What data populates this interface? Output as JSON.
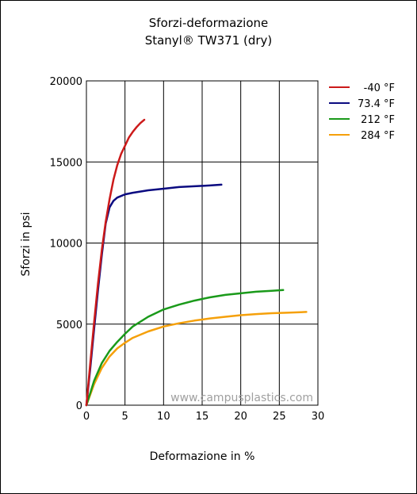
{
  "chart_data": {
    "type": "line",
    "title": "Sforzi-deformazione",
    "subtitle": "Stanyl® TW371 (dry)",
    "xlabel": "Deformazione in %",
    "ylabel": "Sforzi in psi",
    "xlim": [
      0,
      30
    ],
    "ylim": [
      0,
      20000
    ],
    "xticks": [
      "0",
      "5",
      "10",
      "15",
      "20",
      "25",
      "30"
    ],
    "yticks": [
      "0",
      "5000",
      "10000",
      "15000",
      "20000"
    ],
    "grid": true,
    "legend_position": "right",
    "watermark": "www.campusplastics.com",
    "series": [
      {
        "name": "-40 °F",
        "color": "#cc1a1a",
        "points": [
          [
            0,
            0
          ],
          [
            0.5,
            2600
          ],
          [
            1,
            5100
          ],
          [
            1.5,
            7500
          ],
          [
            2,
            9600
          ],
          [
            2.5,
            11300
          ],
          [
            3,
            12700
          ],
          [
            3.5,
            13900
          ],
          [
            4,
            14800
          ],
          [
            4.5,
            15500
          ],
          [
            5,
            16000
          ],
          [
            5.5,
            16500
          ],
          [
            6,
            16850
          ],
          [
            6.5,
            17150
          ],
          [
            7,
            17400
          ],
          [
            7.5,
            17600
          ]
        ]
      },
      {
        "name": "73.4 °F",
        "color": "#0a0a80",
        "points": [
          [
            0,
            0
          ],
          [
            0.5,
            2300
          ],
          [
            1,
            4700
          ],
          [
            1.5,
            7100
          ],
          [
            2,
            9300
          ],
          [
            2.5,
            11200
          ],
          [
            3,
            12200
          ],
          [
            3.5,
            12600
          ],
          [
            4,
            12800
          ],
          [
            5,
            13000
          ],
          [
            6,
            13100
          ],
          [
            8,
            13250
          ],
          [
            10,
            13350
          ],
          [
            12,
            13450
          ],
          [
            14,
            13500
          ],
          [
            16,
            13550
          ],
          [
            17.5,
            13600
          ]
        ]
      },
      {
        "name": "212 °F",
        "color": "#1a9a1a",
        "points": [
          [
            0,
            0
          ],
          [
            1,
            1500
          ],
          [
            2,
            2600
          ],
          [
            3,
            3350
          ],
          [
            4,
            3900
          ],
          [
            5,
            4400
          ],
          [
            6,
            4850
          ],
          [
            8,
            5450
          ],
          [
            10,
            5900
          ],
          [
            12,
            6200
          ],
          [
            14,
            6450
          ],
          [
            16,
            6650
          ],
          [
            18,
            6800
          ],
          [
            20,
            6900
          ],
          [
            22,
            7000
          ],
          [
            24,
            7050
          ],
          [
            25.5,
            7100
          ]
        ]
      },
      {
        "name": "284 °F",
        "color": "#f5a00a",
        "points": [
          [
            0,
            0
          ],
          [
            1,
            1300
          ],
          [
            2,
            2300
          ],
          [
            3,
            3000
          ],
          [
            4,
            3500
          ],
          [
            5,
            3850
          ],
          [
            6,
            4150
          ],
          [
            8,
            4550
          ],
          [
            10,
            4850
          ],
          [
            12,
            5050
          ],
          [
            14,
            5220
          ],
          [
            16,
            5350
          ],
          [
            18,
            5450
          ],
          [
            20,
            5550
          ],
          [
            22,
            5620
          ],
          [
            24,
            5670
          ],
          [
            26,
            5700
          ],
          [
            28.5,
            5750
          ]
        ]
      }
    ]
  }
}
